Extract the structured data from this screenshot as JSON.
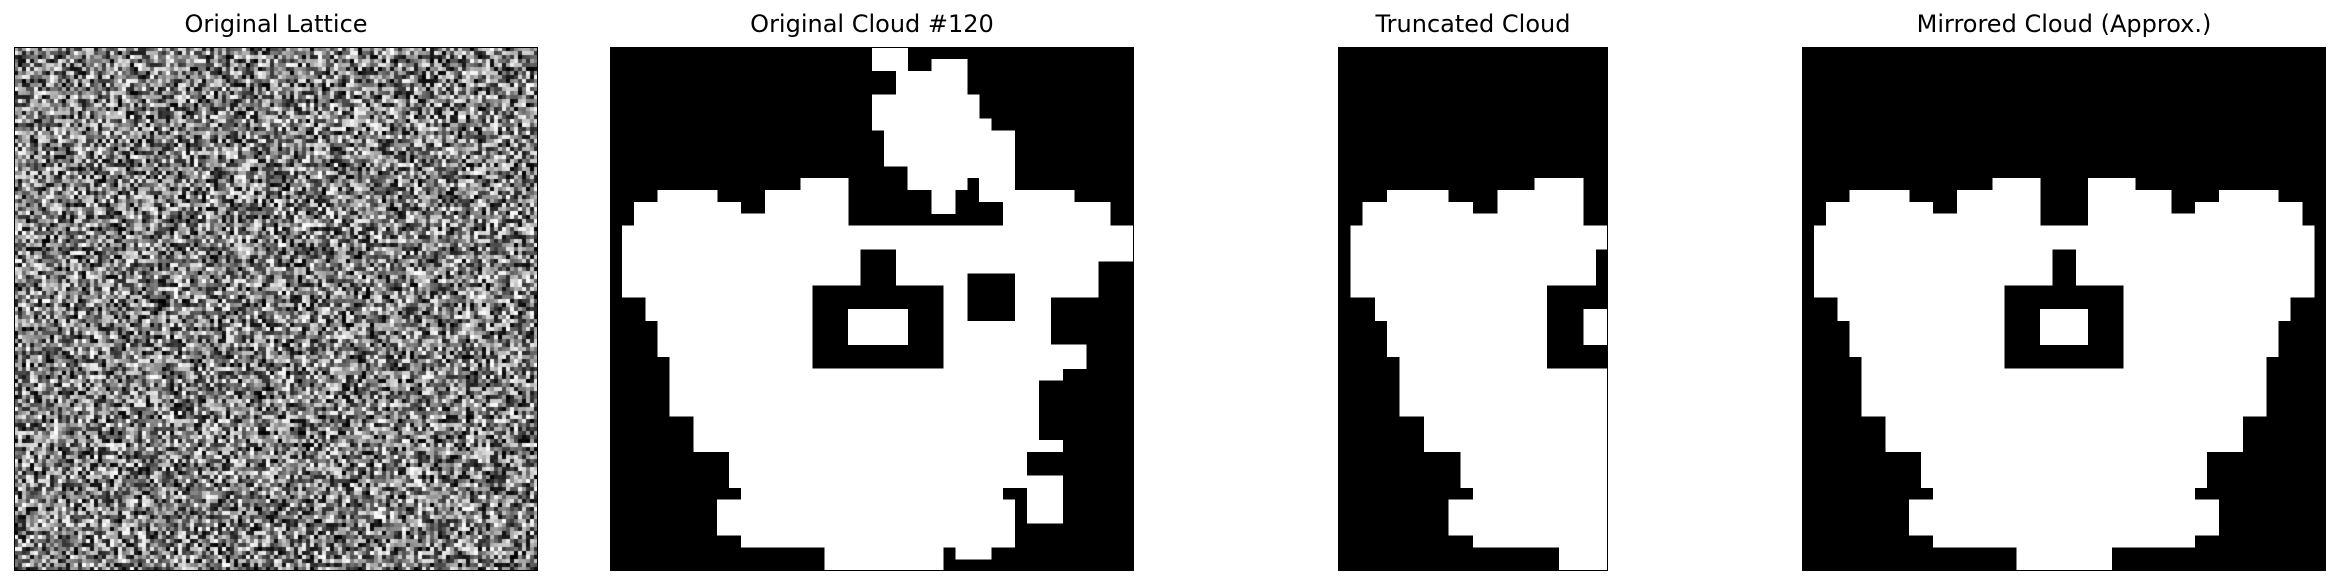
{
  "figure": {
    "background": "#ffffff",
    "cell_on_color": "#ffffff",
    "cell_off_color": "#000000"
  },
  "chart_data": [
    {
      "type": "heatmap",
      "title": "Original Lattice",
      "description_kind": "random grayscale noise lattice",
      "grid_size": [
        131,
        131
      ],
      "value_range": [
        0,
        1
      ],
      "mean_value": 0.5
    },
    {
      "type": "heatmap",
      "title": "Original Cloud #120",
      "grid_size": [
        44,
        44
      ],
      "values": "binary (0 = black, 1 = white); symmetric-ish white cloud blob with black holes"
    },
    {
      "type": "heatmap",
      "title": "Truncated Cloud",
      "grid_size": [
        44,
        22
      ],
      "values": "left half of original cloud"
    },
    {
      "type": "heatmap",
      "title": "Mirrored Cloud (Approx.)",
      "grid_size": [
        44,
        44
      ],
      "values": "truncated cloud mirrored left-right"
    }
  ],
  "titles": {
    "lattice": "Original Lattice",
    "cloud": "Original Cloud #120",
    "truncated": "Truncated Cloud",
    "mirrored": "Mirrored Cloud (Approx.)"
  }
}
